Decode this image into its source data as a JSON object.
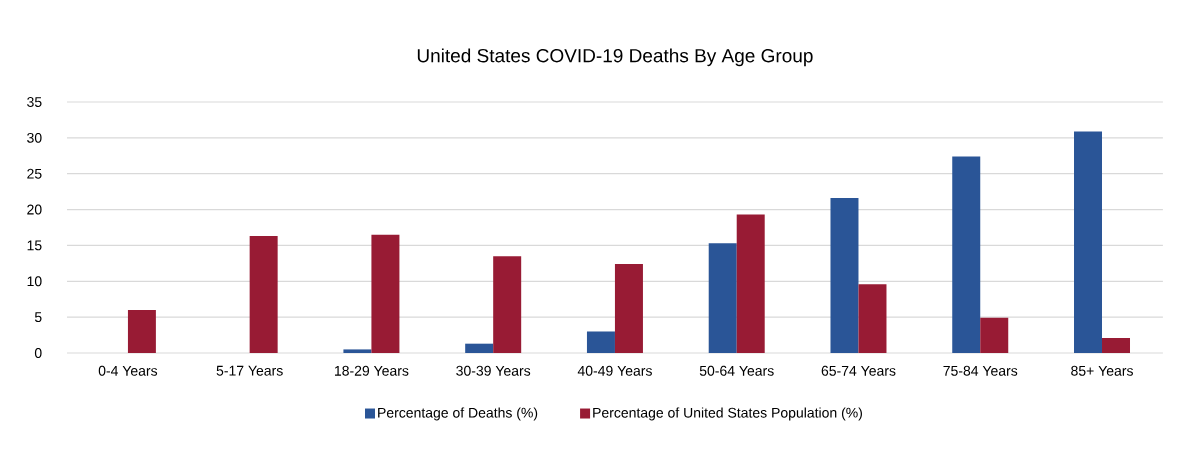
{
  "chart_data": {
    "type": "bar",
    "title": "United States COVID-19 Deaths By Age Group",
    "categories": [
      "0-4 Years",
      "5-17 Years",
      "18-29 Years",
      "30-39 Years",
      "40-49 Years",
      "50-64 Years",
      "65-74 Years",
      "75-84 Years",
      "85+ Years"
    ],
    "series": [
      {
        "name": "Percentage of Deaths (%)",
        "color": "#2a5597",
        "values": [
          0,
          0,
          0.5,
          1.3,
          3.0,
          15.3,
          21.6,
          27.4,
          30.9
        ]
      },
      {
        "name": "Percentage of United States Population (%)",
        "color": "#981b34",
        "values": [
          6.0,
          16.3,
          16.5,
          13.5,
          12.4,
          19.3,
          9.6,
          4.9,
          2.1
        ]
      }
    ],
    "ylim": [
      0,
      35
    ],
    "yticks": [
      0,
      5,
      10,
      15,
      20,
      25,
      30,
      35
    ],
    "grid": "y",
    "legend": "bottom"
  }
}
